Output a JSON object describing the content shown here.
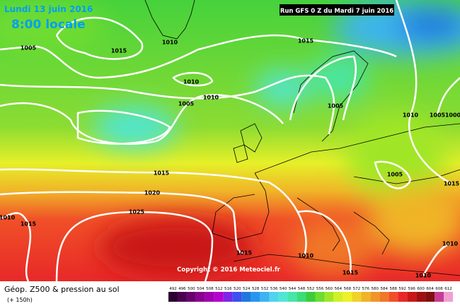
{
  "header": {
    "date": "Lundi 13 juin 2016",
    "time": "8:00 locale",
    "run": "Run GFS 0 Z du Mardi 7 juin 2016"
  },
  "isobar_labels": [
    "1005",
    "1015",
    "1010",
    "1015",
    "1010",
    "1010",
    "1005",
    "1005",
    "1010",
    "1005",
    "1000",
    "1015",
    "1005",
    "1015",
    "1020",
    "1010",
    "1015",
    "1025",
    "1015",
    "1010",
    "1010",
    "1015",
    "1010"
  ],
  "copyright": "Copyright © 2016 Meteociel.fr",
  "footer": {
    "title": "Géop. Z500 & pression au sol",
    "lead": "(+ 150h)"
  },
  "legend": {
    "levels": [
      "492",
      "496",
      "500",
      "504",
      "508",
      "512",
      "516",
      "520",
      "524",
      "528",
      "532",
      "536",
      "540",
      "544",
      "548",
      "552",
      "556",
      "560",
      "564",
      "568",
      "572",
      "576",
      "580",
      "584",
      "588",
      "592",
      "596",
      "600",
      "604",
      "608",
      "612"
    ],
    "colors": [
      "#2a0030",
      "#4a0050",
      "#6a006e",
      "#8a0090",
      "#a000b0",
      "#b400d0",
      "#7a28e6",
      "#3c50f0",
      "#1e78dc",
      "#2896f0",
      "#3cb4f0",
      "#50d2f0",
      "#50e6d2",
      "#46e6aa",
      "#3cdc78",
      "#3ccc3c",
      "#6edc32",
      "#a0e628",
      "#d2f028",
      "#f0f028",
      "#f0d228",
      "#f0b428",
      "#f09628",
      "#f07828",
      "#f05028",
      "#e82828",
      "#c81818",
      "#a01010",
      "#801010",
      "#c83c96",
      "#f0a0d2"
    ]
  }
}
